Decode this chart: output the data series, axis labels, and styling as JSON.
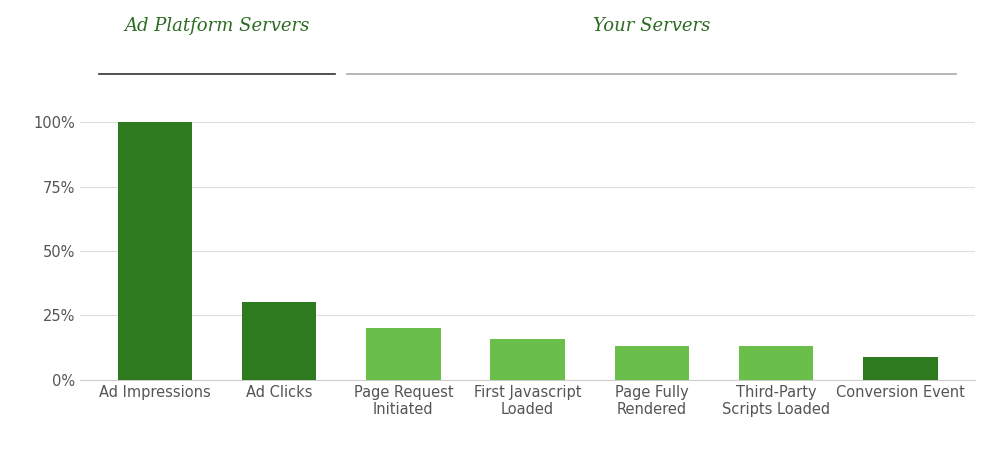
{
  "categories": [
    "Ad Impressions",
    "Ad Clicks",
    "Page Request\nInitiated",
    "First Javascript\nLoaded",
    "Page Fully\nRendered",
    "Third-Party\nScripts Loaded",
    "Conversion Event"
  ],
  "values": [
    100,
    30,
    20,
    16,
    13,
    13,
    9
  ],
  "bar_colors": [
    "#2d7a1f",
    "#2d7a1f",
    "#6abf4b",
    "#6abf4b",
    "#6abf4b",
    "#6abf4b",
    "#2d7a1f"
  ],
  "group1_label": "Ad Platform Servers",
  "group2_label": "Your Servers",
  "group1_indices": [
    0,
    1
  ],
  "group2_indices": [
    2,
    3,
    4,
    5,
    6
  ],
  "group1_line_color": "#333333",
  "group2_line_color": "#aaaaaa",
  "group_label_color": "#2d6b22",
  "yticks": [
    0,
    25,
    50,
    75,
    100
  ],
  "ytick_labels": [
    "0%",
    "25%",
    "50%",
    "75%",
    "100%"
  ],
  "background_color": "#ffffff",
  "grid_color": "#dddddd",
  "tick_label_fontsize": 10.5,
  "group_label_fontsize": 13,
  "bar_width": 0.6
}
